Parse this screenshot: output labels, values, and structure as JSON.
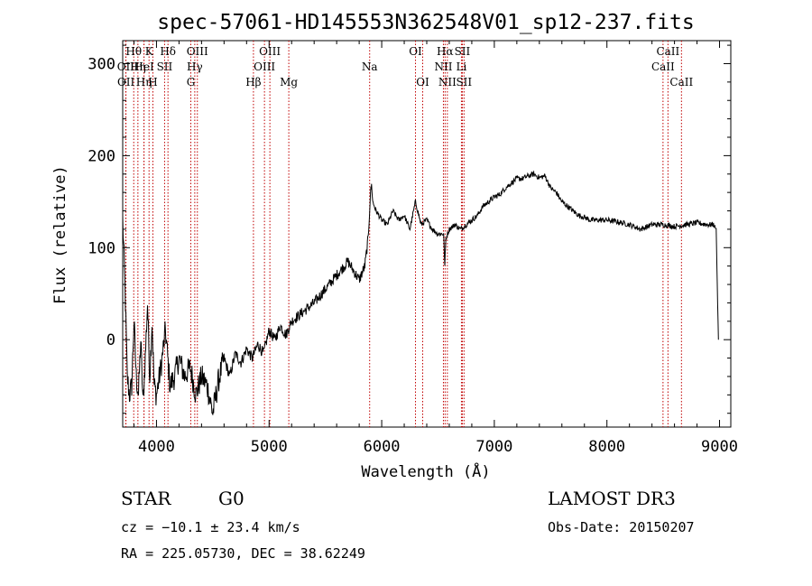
{
  "chart_data": {
    "type": "line",
    "title": "spec-57061-HD145553N362548V01_sp12-237.fits",
    "xlabel": "Wavelength (Å)",
    "ylabel": "Flux (relative)",
    "xlim": [
      3700,
      9100
    ],
    "ylim": [
      -95,
      325
    ],
    "x_ticks": [
      4000,
      5000,
      6000,
      7000,
      8000,
      9000
    ],
    "y_ticks": [
      0,
      100,
      200,
      300
    ],
    "line_color": "#000000",
    "marker_color": "#c00000",
    "series": [
      {
        "name": "flux",
        "x": [
          3700,
          3720,
          3740,
          3760,
          3780,
          3800,
          3820,
          3840,
          3860,
          3880,
          3900,
          3920,
          3940,
          3960,
          3980,
          4000,
          4040,
          4080,
          4120,
          4160,
          4200,
          4250,
          4300,
          4350,
          4400,
          4450,
          4500,
          4550,
          4600,
          4650,
          4700,
          4750,
          4800,
          4850,
          4900,
          4950,
          5000,
          5050,
          5100,
          5150,
          5200,
          5300,
          5400,
          5500,
          5600,
          5700,
          5800,
          5850,
          5880,
          5900,
          5910,
          5920,
          5950,
          6000,
          6050,
          6100,
          6150,
          6200,
          6250,
          6300,
          6350,
          6400,
          6450,
          6500,
          6550,
          6560,
          6570,
          6600,
          6650,
          6700,
          6750,
          6800,
          6850,
          6900,
          6950,
          7000,
          7050,
          7100,
          7150,
          7200,
          7250,
          7300,
          7350,
          7400,
          7450,
          7500,
          7550,
          7600,
          7650,
          7700,
          7750,
          7800,
          7850,
          7900,
          8000,
          8100,
          8200,
          8300,
          8400,
          8500,
          8600,
          8700,
          8800,
          8900,
          8950,
          8970,
          8980,
          8990
        ],
        "y": [
          130,
          60,
          -40,
          -60,
          -50,
          20,
          -40,
          -60,
          0,
          -70,
          -20,
          40,
          -40,
          20,
          -50,
          -60,
          -30,
          10,
          -50,
          -40,
          -20,
          -40,
          -30,
          -60,
          -40,
          -50,
          -80,
          -45,
          -20,
          -40,
          -15,
          -25,
          -10,
          -20,
          -5,
          -15,
          10,
          0,
          15,
          5,
          20,
          30,
          40,
          55,
          70,
          85,
          65,
          80,
          110,
          160,
          168,
          150,
          140,
          130,
          125,
          140,
          130,
          135,
          120,
          150,
          125,
          130,
          120,
          115,
          115,
          80,
          110,
          120,
          125,
          120,
          125,
          130,
          135,
          145,
          150,
          155,
          158,
          165,
          170,
          175,
          175,
          178,
          180,
          176,
          178,
          165,
          160,
          150,
          145,
          140,
          135,
          133,
          130,
          130,
          130,
          128,
          125,
          120,
          125,
          125,
          123,
          125,
          127,
          125,
          125,
          120,
          60,
          0
        ]
      }
    ],
    "spectral_lines": [
      {
        "label": "Hθ",
        "wl": 3798,
        "row": 0
      },
      {
        "label": "OII",
        "wl": 3727,
        "row": 1
      },
      {
        "label": "OII",
        "wl": 3729,
        "row": 2
      },
      {
        "label": "Hη",
        "wl": 3835,
        "row": 1
      },
      {
        "label": "HeI",
        "wl": 3889,
        "row": 1
      },
      {
        "label": "Hη",
        "wl": 3889,
        "row": 2
      },
      {
        "label": "K",
        "wl": 3934,
        "row": 0
      },
      {
        "label": "H",
        "wl": 3968,
        "row": 2
      },
      {
        "label": "SII",
        "wl": 4072,
        "row": 1
      },
      {
        "label": "Hδ",
        "wl": 4102,
        "row": 0
      },
      {
        "label": "OIII",
        "wl": 4363,
        "row": 0
      },
      {
        "label": "Hγ",
        "wl": 4340,
        "row": 1
      },
      {
        "label": "G",
        "wl": 4305,
        "row": 2
      },
      {
        "label": "Hβ",
        "wl": 4861,
        "row": 2
      },
      {
        "label": "OIII",
        "wl": 5007,
        "row": 0
      },
      {
        "label": "OIII",
        "wl": 4959,
        "row": 1
      },
      {
        "label": "Mg",
        "wl": 5175,
        "row": 2
      },
      {
        "label": "Na",
        "wl": 5893,
        "row": 1
      },
      {
        "label": "OI",
        "wl": 6300,
        "row": 0
      },
      {
        "label": "OI",
        "wl": 6364,
        "row": 2
      },
      {
        "label": "Hα",
        "wl": 6563,
        "row": 0
      },
      {
        "label": "NII",
        "wl": 6548,
        "row": 1
      },
      {
        "label": "NII",
        "wl": 6583,
        "row": 2
      },
      {
        "label": "SII",
        "wl": 6716,
        "row": 0
      },
      {
        "label": "Li",
        "wl": 6708,
        "row": 1
      },
      {
        "label": "SII",
        "wl": 6731,
        "row": 2
      },
      {
        "label": "CaII",
        "wl": 8542,
        "row": 0
      },
      {
        "label": "CaII",
        "wl": 8498,
        "row": 1
      },
      {
        "label": "CaII",
        "wl": 8662,
        "row": 2
      }
    ]
  },
  "info": {
    "object_type": "STAR",
    "subclass": "G0",
    "survey": "LAMOST DR3",
    "redshift": "cz = −10.1 ± 23.4 km/s",
    "obs_date": "Obs-Date: 20150207",
    "coords": "RA = 225.05730, DEC =  38.62249"
  }
}
